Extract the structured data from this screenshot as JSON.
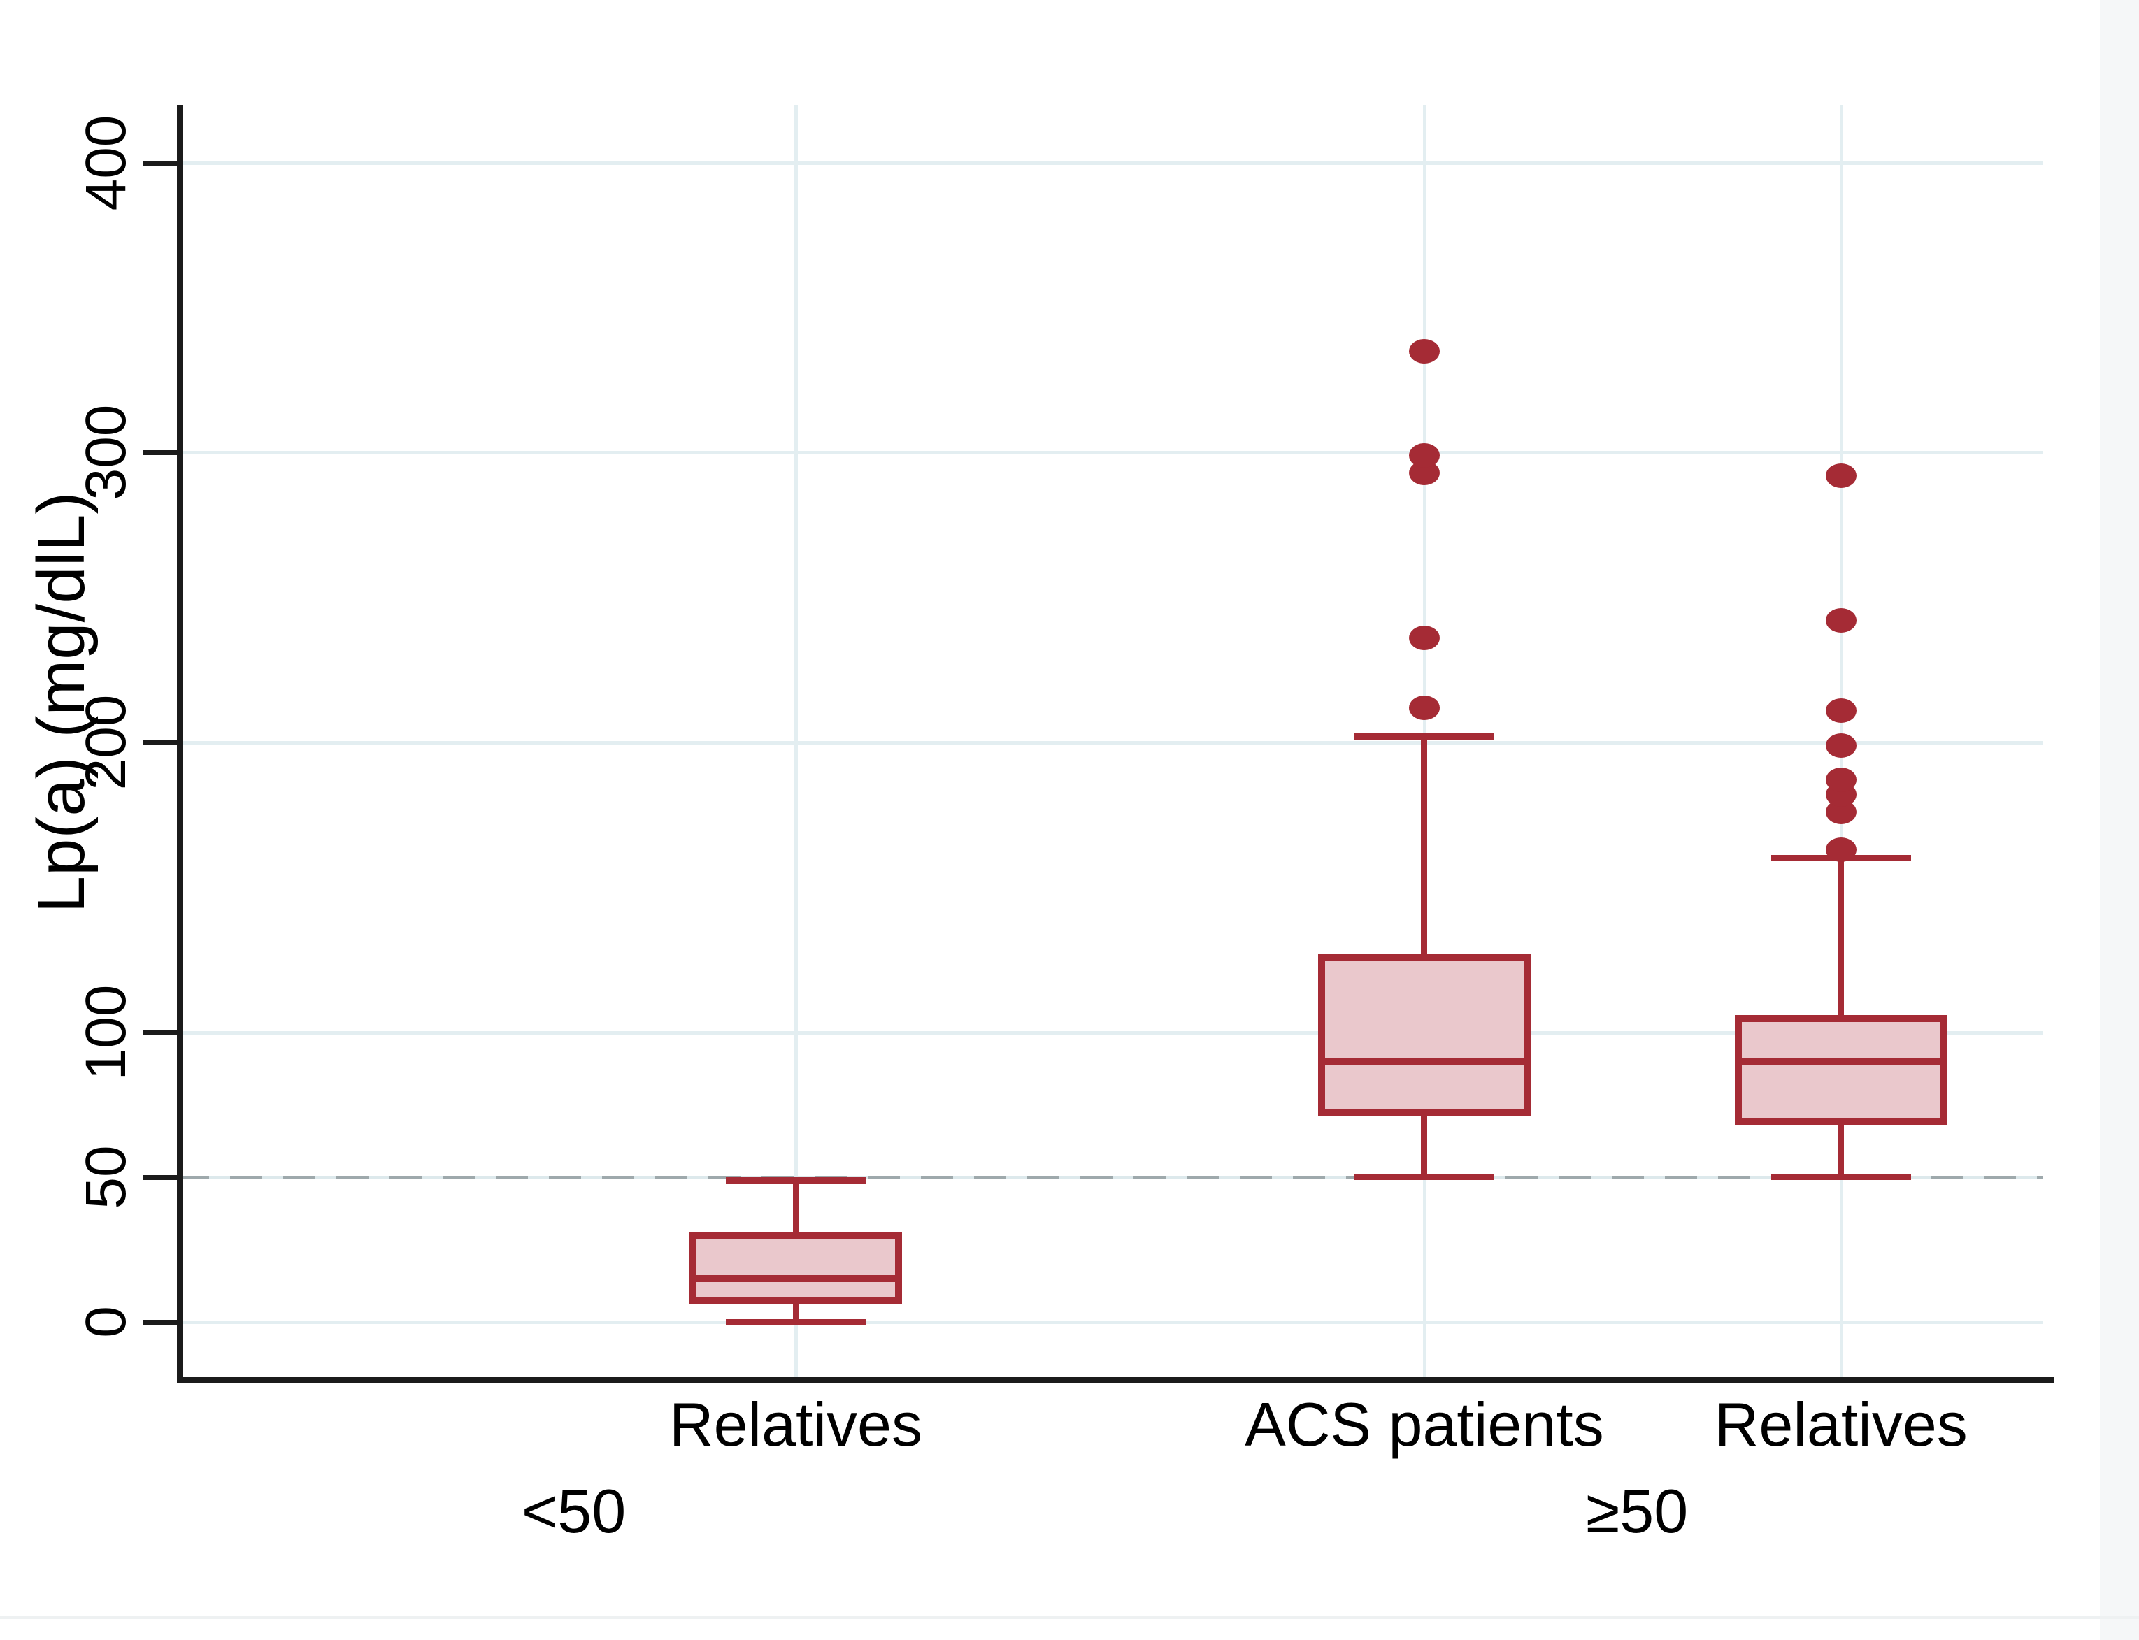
{
  "figure": {
    "background": "#ffffff",
    "right_band_color": "#f5f7f8"
  },
  "chart_data": {
    "type": "boxplot",
    "title": "",
    "ylabel": "Lp(a) (mg/dlL)",
    "xlabel": "",
    "ylim": [
      -19,
      420
    ],
    "grid": "horizontal-and-category-vertical",
    "yticks": [
      {
        "value": 0,
        "label": "0"
      },
      {
        "value": 50,
        "label": "50"
      },
      {
        "value": 100,
        "label": "100"
      },
      {
        "value": 200,
        "label": "200"
      },
      {
        "value": 300,
        "label": "300"
      },
      {
        "value": 400,
        "label": "400"
      }
    ],
    "gridline_values": [
      0,
      100,
      200,
      300,
      400
    ],
    "reference_line": {
      "value": 50,
      "style": "dashed",
      "color": "#9ea9ac"
    },
    "colors": {
      "box_border": "#a52b35",
      "box_fill": "#eac8cc",
      "outlier": "#a52b35",
      "grid": "#e3eef1",
      "axis": "#1b1b1b"
    },
    "groups": [
      {
        "label": "<50",
        "label_x_frac": 0.212,
        "boxes": [
          {
            "category": "Relatives",
            "x_frac": 0.3306,
            "whisker_low": 0,
            "q1": 6,
            "median": 15,
            "q3": 31,
            "whisker_high": 49,
            "outliers": []
          }
        ]
      },
      {
        "label": "≥50",
        "label_x_frac": 0.78,
        "boxes": [
          {
            "category": "ACS patients",
            "x_frac": 0.6664,
            "whisker_low": 50,
            "q1": 71,
            "median": 90,
            "q3": 127,
            "whisker_high": 202,
            "outliers": [
              212,
              236,
              293,
              299,
              335
            ]
          },
          {
            "category": "Relatives",
            "x_frac": 0.889,
            "whisker_low": 50,
            "q1": 68,
            "median": 90,
            "q3": 106,
            "whisker_high": 160,
            "outliers": [
              163,
              176,
              182,
              187,
              199,
              211,
              242,
              292
            ]
          }
        ]
      }
    ]
  }
}
